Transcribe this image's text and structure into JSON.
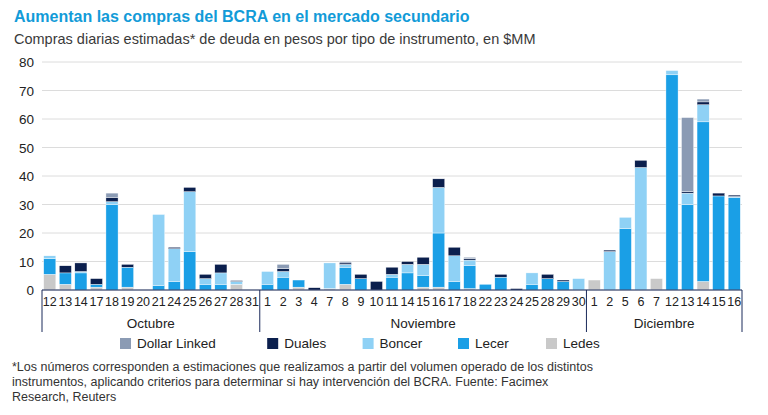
{
  "chart_data": {
    "type": "bar",
    "stacked": true,
    "grid": true,
    "legend": "bottom",
    "title": "Aumentan las compras del BCRA en el mercado secundario",
    "subtitle": "Compras diarias estimadas* de deuda en pesos por tipo de instrumento, en $MM",
    "footnote": "*Los números corresponden a estimaciones que realizamos a partir del volumen operado de los distintos instrumentos, aplicando criterios para determinar si hay intervención del BCRA. Fuente: Facimex Research, Reuters",
    "categories": [
      "12",
      "13",
      "14",
      "17",
      "18",
      "19",
      "20",
      "21",
      "24",
      "25",
      "26",
      "27",
      "28",
      "31",
      "1",
      "2",
      "3",
      "4",
      "7",
      "8",
      "9",
      "10",
      "11",
      "14",
      "15",
      "16",
      "17",
      "18",
      "22",
      "23",
      "24",
      "25",
      "28",
      "29",
      "30",
      "1",
      "2",
      "5",
      "6",
      "7",
      "12",
      "13",
      "14",
      "15",
      "16"
    ],
    "category_groups": [
      {
        "label": "Octubre",
        "count": 14
      },
      {
        "label": "Noviembre",
        "count": 21
      },
      {
        "label": "Diciembre",
        "count": 10
      }
    ],
    "ylim": [
      0,
      80
    ],
    "yticks": [
      0,
      10,
      20,
      30,
      40,
      50,
      60,
      70,
      80
    ],
    "series": [
      {
        "name": "Ledes",
        "color": "#c9c9c9",
        "values": [
          5.5,
          2,
          0,
          1,
          0,
          1,
          0,
          0,
          0,
          0,
          0,
          0,
          2,
          0,
          0,
          0,
          1,
          0,
          0.5,
          2,
          0,
          0,
          0,
          0,
          1,
          1,
          0,
          0.5,
          0,
          0,
          0,
          0,
          0,
          0,
          0,
          3.5,
          0,
          0,
          0,
          4,
          0,
          0,
          3,
          0,
          0
        ]
      },
      {
        "name": "Lecer",
        "color": "#1a9fe6",
        "values": [
          5.5,
          4,
          6,
          1,
          30,
          7,
          0,
          1.5,
          3,
          13.5,
          2,
          2,
          0,
          0,
          2,
          4.5,
          2.5,
          0,
          0,
          6,
          4,
          0,
          4.5,
          6,
          4,
          19,
          3,
          8,
          2,
          4.5,
          0,
          2,
          4,
          3,
          0,
          0,
          0,
          21.5,
          0,
          0,
          75.5,
          30,
          56,
          33,
          32.5
        ]
      },
      {
        "name": "Boncer",
        "color": "#8fd1f5",
        "values": [
          1,
          0,
          0.5,
          0,
          1,
          0,
          0,
          25,
          11.5,
          21,
          2,
          4,
          1,
          0,
          4.5,
          2,
          0,
          0,
          9,
          1,
          0,
          0,
          1,
          3,
          4,
          16,
          9,
          2,
          0,
          0,
          0,
          4,
          0,
          0,
          4,
          0,
          13.5,
          4,
          43,
          0,
          1.5,
          4,
          6,
          0,
          0.3
        ]
      },
      {
        "name": "Duales",
        "color": "#0b1f4d",
        "values": [
          0,
          2.5,
          3,
          2,
          1.5,
          1,
          0,
          0,
          0.5,
          1.5,
          1.5,
          3,
          0.3,
          0,
          0,
          1,
          0,
          0.8,
          0,
          0.5,
          1.5,
          3,
          2.5,
          1,
          2.5,
          3,
          3,
          0.5,
          0,
          1,
          0.5,
          0,
          1.5,
          0.5,
          0,
          0,
          0.5,
          0,
          2.5,
          0,
          0,
          0.5,
          1,
          1,
          0.5
        ]
      },
      {
        "name": "Dollar Linked",
        "color": "#8b9bb4",
        "values": [
          0,
          0,
          0,
          0,
          1.5,
          0,
          0,
          0,
          0,
          0,
          0,
          0,
          0,
          0,
          0,
          1.5,
          0,
          0,
          0,
          0.5,
          0,
          0,
          0,
          0,
          0,
          0,
          0,
          0.5,
          0,
          0,
          0,
          0,
          0,
          0,
          0,
          0,
          0,
          0,
          0,
          0,
          0,
          26,
          1,
          0,
          0
        ]
      }
    ]
  }
}
